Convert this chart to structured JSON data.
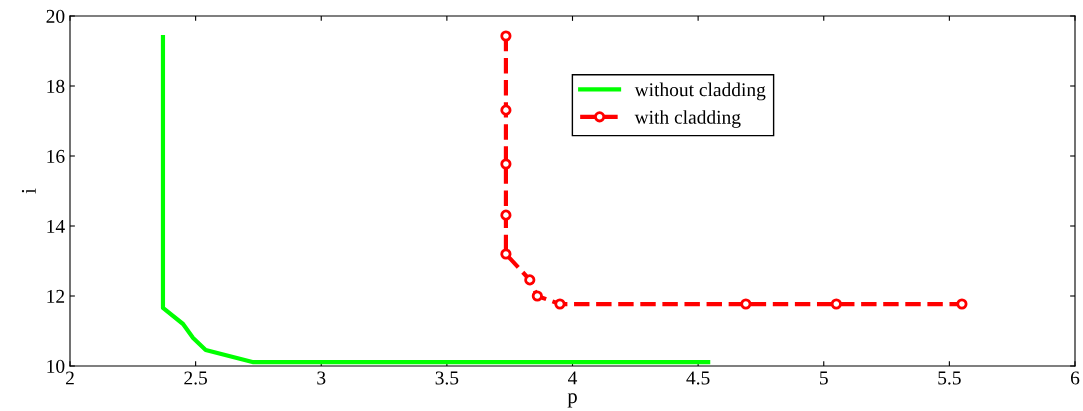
{
  "chart_data": {
    "type": "line",
    "xlabel": "p",
    "ylabel": "i",
    "xlim": [
      2,
      6
    ],
    "ylim": [
      10,
      20
    ],
    "xticks": [
      2,
      2.5,
      3,
      3.5,
      4,
      4.5,
      5,
      5.5,
      6
    ],
    "yticks": [
      10,
      12,
      14,
      16,
      18,
      20
    ],
    "grid": false,
    "legend": "top",
    "series": [
      {
        "name": "without cladding",
        "color": "#00ff00",
        "line_style": "solid",
        "marker": "none",
        "x": [
          2.37,
          2.37,
          2.45,
          2.49,
          2.54,
          2.73,
          4.54
        ],
        "values": [
          19.4,
          11.66,
          11.2,
          10.8,
          10.46,
          10.11,
          10.11
        ]
      },
      {
        "name": "with cladding",
        "color": "#ff0000",
        "line_style": "dashed",
        "marker": "circle",
        "x": [
          3.735,
          3.735,
          3.735,
          3.735,
          3.735,
          3.83,
          3.86,
          3.95,
          4.69,
          5.05,
          5.55
        ],
        "values": [
          19.43,
          17.31,
          15.77,
          14.31,
          13.2,
          12.46,
          12.0,
          11.77,
          11.77,
          11.77,
          11.77
        ]
      }
    ]
  }
}
